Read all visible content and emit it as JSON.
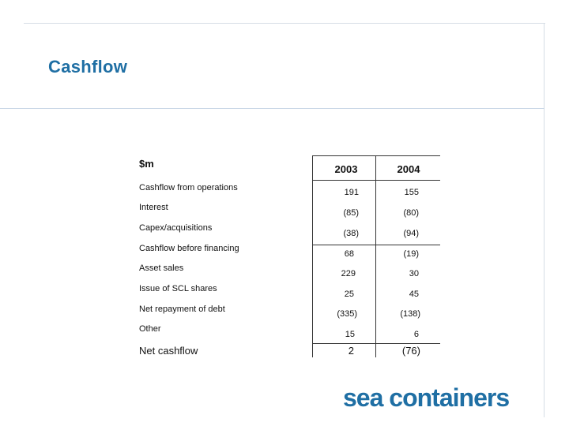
{
  "slide": {
    "title": "Cashflow",
    "logo_text": "sea containers",
    "accent_color": "#1f6fa4"
  },
  "table": {
    "unit": "$m",
    "columns": [
      "2003",
      "2004"
    ],
    "rows": [
      {
        "label": "Cashflow from operations",
        "values": [
          "191",
          "155"
        ]
      },
      {
        "label": "Interest",
        "values": [
          "(85)",
          "(80)"
        ]
      },
      {
        "label": "Capex/acquisitions",
        "values": [
          "(38)",
          "(94)"
        ]
      },
      {
        "label": "Cashflow before financing",
        "values": [
          "68",
          "(19)"
        ]
      },
      {
        "label": "Asset sales",
        "values": [
          "229",
          "30"
        ]
      },
      {
        "label": "Issue of SCL shares",
        "values": [
          "25",
          "45"
        ]
      },
      {
        "label": "Net repayment of debt",
        "values": [
          "(335)",
          "(138)"
        ]
      },
      {
        "label": "Other",
        "values": [
          "15",
          "6"
        ]
      }
    ],
    "total": {
      "label": "Net cashflow",
      "values": [
        "2",
        "(76)"
      ]
    }
  }
}
